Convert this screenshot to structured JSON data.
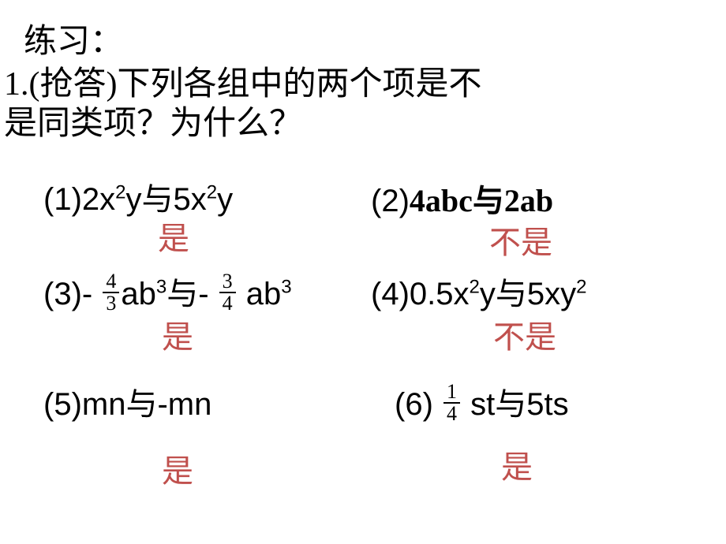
{
  "header": "练习：",
  "question": {
    "line1": "1.(抢答)下列各组中的两个项是不",
    "line2": "是同类项？为什么？"
  },
  "items": {
    "i1": {
      "label": "(1)",
      "t1a": "2x",
      "t1sup1": "2",
      "t1b": "y与5x",
      "t1sup2": "2",
      "t1c": "y"
    },
    "i2": {
      "label": "(2)",
      "text": "4abc与2ab"
    },
    "i3": {
      "label": "(3)-",
      "f1n": "4",
      "f1d": "3",
      "mid1": "ab",
      "sup1": "3",
      "conn": "与-",
      "f2n": "3",
      "f2d": "4",
      "mid2": " ab",
      "sup2": "3"
    },
    "i4": {
      "label": "(4)",
      "a": "0.5x",
      "s1": "2",
      "b": "y与5xy",
      "s2": "2"
    },
    "i5": {
      "label": "(5)",
      "text": "mn与-mn"
    },
    "i6": {
      "label": "(6)",
      "fn": "1",
      "fd": "4",
      "rest": " st与5ts"
    }
  },
  "answers": {
    "a1": "是",
    "a2": "不是",
    "a3": "是",
    "a4": "不是",
    "a5": "是",
    "a6": "是"
  },
  "colors": {
    "text": "#000000",
    "answer": "#c0504d",
    "background": "#ffffff"
  }
}
